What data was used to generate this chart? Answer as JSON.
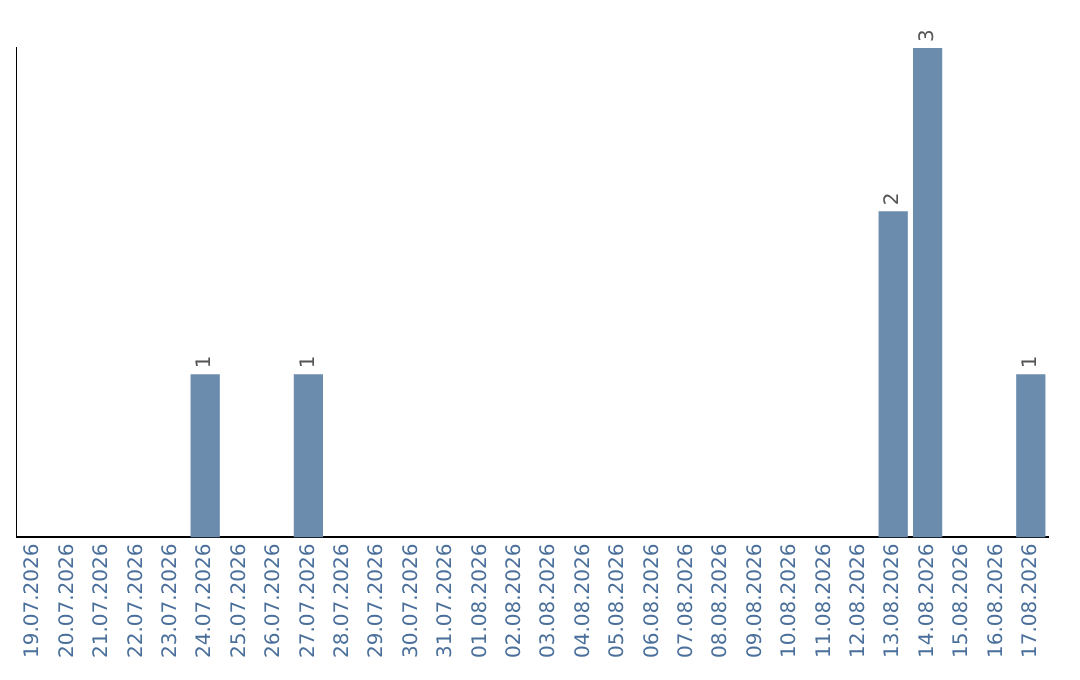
{
  "chart_data": {
    "type": "bar",
    "categories": [
      "19.07.2026",
      "20.07.2026",
      "21.07.2026",
      "22.07.2026",
      "23.07.2026",
      "24.07.2026",
      "25.07.2026",
      "26.07.2026",
      "27.07.2026",
      "28.07.2026",
      "29.07.2026",
      "30.07.2026",
      "31.07.2026",
      "01.08.2026",
      "02.08.2026",
      "03.08.2026",
      "04.08.2026",
      "05.08.2026",
      "06.08.2026",
      "07.08.2026",
      "08.08.2026",
      "09.08.2026",
      "10.08.2026",
      "11.08.2026",
      "12.08.2026",
      "13.08.2026",
      "14.08.2026",
      "15.08.2026",
      "16.08.2026",
      "17.08.2026"
    ],
    "values": [
      0,
      0,
      0,
      0,
      0,
      1,
      0,
      0,
      1,
      0,
      0,
      0,
      0,
      0,
      0,
      0,
      0,
      0,
      0,
      0,
      0,
      0,
      0,
      0,
      0,
      2,
      3,
      0,
      0,
      1
    ],
    "value_labels": [
      null,
      null,
      null,
      null,
      null,
      "1",
      null,
      null,
      "1",
      null,
      null,
      null,
      null,
      null,
      null,
      null,
      null,
      null,
      null,
      null,
      null,
      null,
      null,
      null,
      null,
      "2",
      "3",
      null,
      null,
      "1"
    ],
    "color": "#6b8cac",
    "grid": false,
    "legend": false,
    "tick_labels": "x"
  }
}
